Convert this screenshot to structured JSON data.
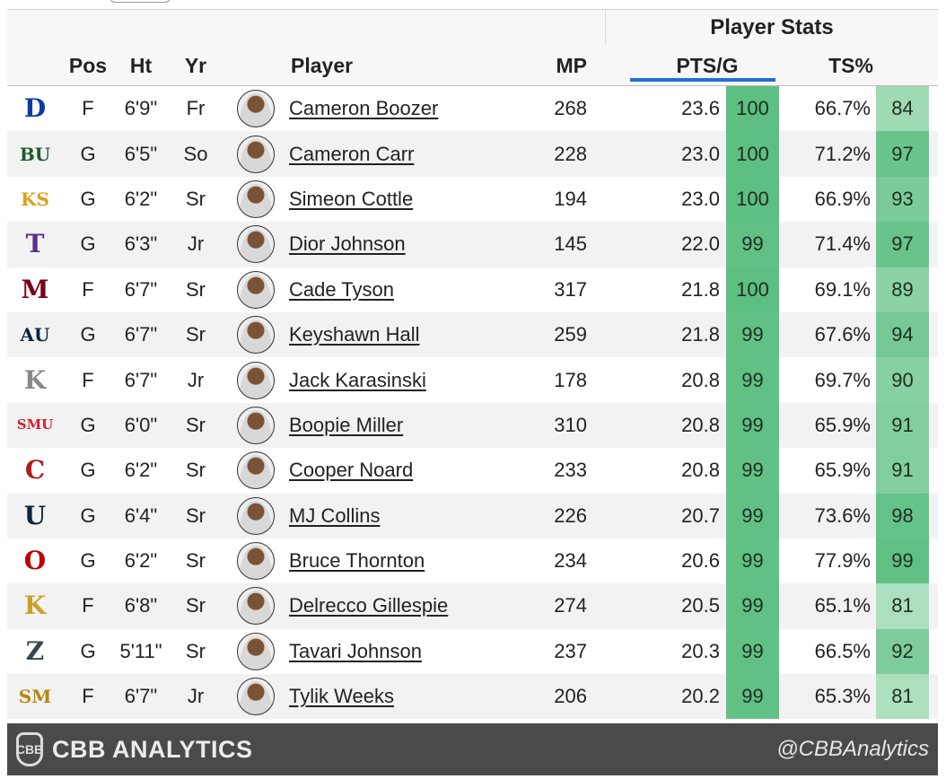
{
  "header": {
    "group_title": "Player Stats",
    "columns": {
      "pos": "Pos",
      "ht": "Ht",
      "yr": "Yr",
      "player": "Player",
      "mp": "MP",
      "pts": "PTS/G",
      "ts": "TS%"
    },
    "sorted_column": "PTS/G"
  },
  "rows": [
    {
      "team_icon": "duke-logo-icon",
      "logo_text": "D",
      "logo_color": "#0a3aa6",
      "pos": "F",
      "ht": "6'9\"",
      "yr": "Fr",
      "player": "Cameron Boozer",
      "mp": "268",
      "pts": "23.6",
      "pts_pct": "100",
      "ts": "66.7%",
      "ts_pct": "84"
    },
    {
      "team_icon": "baylor-logo-icon",
      "logo_text": "BU",
      "logo_color": "#1f5a2a",
      "pos": "G",
      "ht": "6'5\"",
      "yr": "So",
      "player": "Cameron Carr",
      "mp": "228",
      "pts": "23.0",
      "pts_pct": "100",
      "ts": "71.2%",
      "ts_pct": "97"
    },
    {
      "team_icon": "kennesaw-state-logo-icon",
      "logo_text": "KS",
      "logo_color": "#d9a21b",
      "pos": "G",
      "ht": "6'2\"",
      "yr": "Sr",
      "player": "Simeon Cottle",
      "mp": "194",
      "pts": "23.0",
      "pts_pct": "100",
      "ts": "66.9%",
      "ts_pct": "93"
    },
    {
      "team_icon": "tarleton-logo-icon",
      "logo_text": "T",
      "logo_color": "#5b2c8f",
      "pos": "G",
      "ht": "6'3\"",
      "yr": "Jr",
      "player": "Dior Johnson",
      "mp": "145",
      "pts": "22.0",
      "pts_pct": "99",
      "ts": "71.4%",
      "ts_pct": "97"
    },
    {
      "team_icon": "minnesota-logo-icon",
      "logo_text": "M",
      "logo_color": "#7a0019",
      "pos": "F",
      "ht": "6'7\"",
      "yr": "Sr",
      "player": "Cade Tyson",
      "mp": "317",
      "pts": "21.8",
      "pts_pct": "100",
      "ts": "69.1%",
      "ts_pct": "89"
    },
    {
      "team_icon": "auburn-logo-icon",
      "logo_text": "AU",
      "logo_color": "#0c2340",
      "pos": "G",
      "ht": "6'7\"",
      "yr": "Sr",
      "player": "Keyshawn Hall",
      "mp": "259",
      "pts": "21.8",
      "pts_pct": "99",
      "ts": "67.6%",
      "ts_pct": "94"
    },
    {
      "team_icon": "knight-helmet-logo-icon",
      "logo_text": "K",
      "logo_color": "#8a8a8a",
      "pos": "F",
      "ht": "6'7\"",
      "yr": "Jr",
      "player": "Jack Karasinski",
      "mp": "178",
      "pts": "20.8",
      "pts_pct": "99",
      "ts": "69.7%",
      "ts_pct": "90"
    },
    {
      "team_icon": "smu-mustang-logo-icon",
      "logo_text": "SMU",
      "logo_color": "#d4202a",
      "pos": "G",
      "ht": "6'0\"",
      "yr": "Sr",
      "player": "Boopie Miller",
      "mp": "310",
      "pts": "20.8",
      "pts_pct": "99",
      "ts": "65.9%",
      "ts_pct": "91"
    },
    {
      "team_icon": "cornell-logo-icon",
      "logo_text": "C",
      "logo_color": "#b31b1b",
      "pos": "G",
      "ht": "6'2\"",
      "yr": "Sr",
      "player": "Cooper Noard",
      "mp": "233",
      "pts": "20.8",
      "pts_pct": "99",
      "ts": "65.9%",
      "ts_pct": "91"
    },
    {
      "team_icon": "utah-state-logo-icon",
      "logo_text": "U",
      "logo_color": "#0f2439",
      "pos": "G",
      "ht": "6'4\"",
      "yr": "Sr",
      "player": "MJ Collins",
      "mp": "226",
      "pts": "20.7",
      "pts_pct": "99",
      "ts": "73.6%",
      "ts_pct": "98"
    },
    {
      "team_icon": "ohio-state-logo-icon",
      "logo_text": "O",
      "logo_color": "#bb0000",
      "pos": "G",
      "ht": "6'2\"",
      "yr": "Sr",
      "player": "Bruce Thornton",
      "mp": "234",
      "pts": "20.6",
      "pts_pct": "99",
      "ts": "77.9%",
      "ts_pct": "99"
    },
    {
      "team_icon": "kent-state-logo-icon",
      "logo_text": "K",
      "logo_color": "#c9a227",
      "pos": "F",
      "ht": "6'8\"",
      "yr": "Sr",
      "player": "Delrecco Gillespie",
      "mp": "274",
      "pts": "20.5",
      "pts_pct": "99",
      "ts": "65.1%",
      "ts_pct": "81"
    },
    {
      "team_icon": "akron-logo-icon",
      "logo_text": "Z",
      "logo_color": "#3a4250",
      "pos": "G",
      "ht": "5'11\"",
      "yr": "Sr",
      "player": "Tavari Johnson",
      "mp": "237",
      "pts": "20.3",
      "pts_pct": "99",
      "ts": "66.5%",
      "ts_pct": "92"
    },
    {
      "team_icon": "southern-miss-logo-icon",
      "logo_text": "SM",
      "logo_color": "#b8860b",
      "pos": "F",
      "ht": "6'7\"",
      "yr": "Jr",
      "player": "Tylik Weeks",
      "mp": "206",
      "pts": "20.2",
      "pts_pct": "99",
      "ts": "65.3%",
      "ts_pct": "81"
    }
  ],
  "footer": {
    "brand_icon": "cbb-analytics-shield-icon",
    "brand_name": "CBB ANALYTICS",
    "handle": "@CBBAnalytics"
  },
  "colors": {
    "accent_sort": "#1f6fd6",
    "percentile_high": "#5dbf82",
    "percentile_low": "#b8e4c6",
    "footer_bg": "#4a4a4a"
  }
}
